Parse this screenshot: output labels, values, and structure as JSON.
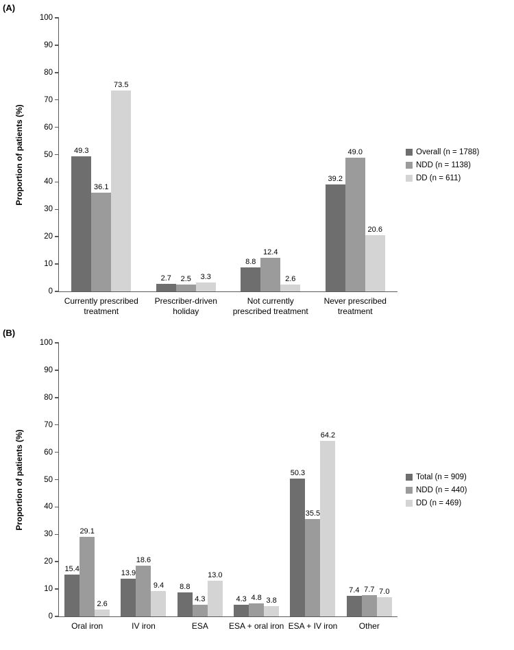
{
  "chart_data": [
    {
      "type": "bar",
      "panel_label": "(A)",
      "title": "",
      "xlabel": "",
      "ylabel": "Proportion of patients (%)",
      "ylim": [
        0,
        100
      ],
      "ytick_step": 10,
      "grid": false,
      "legend_position": "right",
      "value_labels": true,
      "categories": [
        "Currently prescribed\ntreatment",
        "Prescriber-driven\nholiday",
        "Not currently\nprescribed treatment",
        "Never prescribed\ntreatment"
      ],
      "series": [
        {
          "name": "Overall (n = 1788)",
          "color": "#6e6e6e",
          "values": [
            49.3,
            2.7,
            8.8,
            39.2
          ]
        },
        {
          "name": "NDD (n = 1138)",
          "color": "#9b9b9b",
          "values": [
            36.1,
            2.5,
            12.4,
            49.0
          ]
        },
        {
          "name": "DD (n = 611)",
          "color": "#d4d4d4",
          "values": [
            73.5,
            3.3,
            2.6,
            20.6
          ]
        }
      ]
    },
    {
      "type": "bar",
      "panel_label": "(B)",
      "title": "",
      "xlabel": "",
      "ylabel": "Proportion of patients (%)",
      "ylim": [
        0,
        100
      ],
      "ytick_step": 10,
      "grid": false,
      "legend_position": "right",
      "value_labels": true,
      "categories": [
        "Oral iron",
        "IV iron",
        "ESA",
        "ESA + oral iron",
        "ESA + IV iron",
        "Other"
      ],
      "series": [
        {
          "name": "Total (n = 909)",
          "color": "#6e6e6e",
          "values": [
            15.4,
            13.9,
            8.8,
            4.3,
            50.3,
            7.4
          ]
        },
        {
          "name": "NDD (n = 440)",
          "color": "#9b9b9b",
          "values": [
            29.1,
            18.6,
            4.3,
            4.8,
            35.5,
            7.7
          ]
        },
        {
          "name": "DD (n = 469)",
          "color": "#d4d4d4",
          "values": [
            2.6,
            9.4,
            13.0,
            3.8,
            64.2,
            7.0
          ]
        }
      ]
    }
  ],
  "colors": {
    "axis": "#595959",
    "series_dark": "#6e6e6e",
    "series_mid": "#9b9b9b",
    "series_light": "#d4d4d4"
  }
}
